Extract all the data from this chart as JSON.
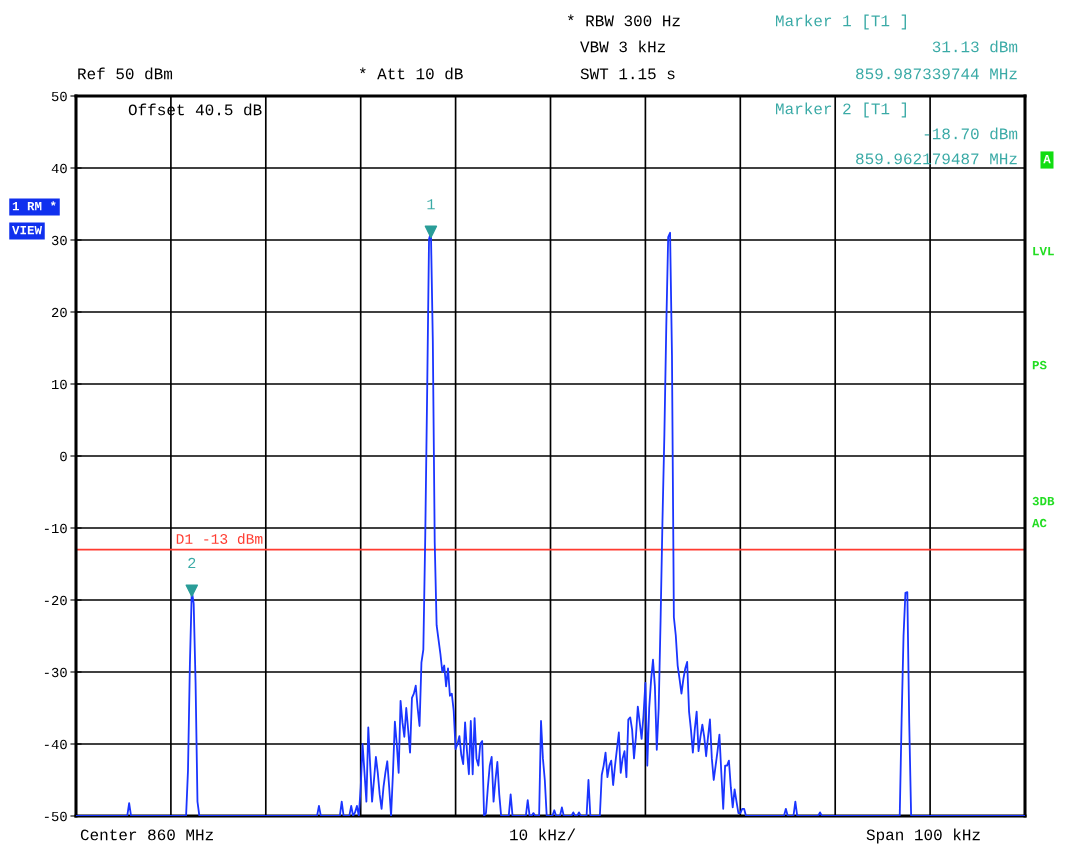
{
  "chart_data": {
    "type": "line",
    "annotations": [
      "Ref 50 dBm",
      "* Att 10 dB",
      "* RBW 300 Hz",
      "VBW 3 kHz",
      "SWT 1.15 s",
      "Marker 1 [T1 ]",
      "31.13 dBm",
      "859.987339744 MHz",
      "Offset 40.5 dB",
      "Marker 2 [T1 ]",
      "-18.70 dBm",
      "859.962179487 MHz",
      "1 RM *",
      "VIEW",
      "A",
      "LVL",
      "PS",
      "3DB",
      "AC",
      "Center 860 MHz",
      "10 kHz/",
      "Span 100 kHz",
      {
        "text": "1",
        "y": 31.13
      },
      {
        "text": "2",
        "y": -18.7
      }
    ],
    "categories": [
      null,
      null,
      null,
      null,
      null,
      null,
      null,
      null,
      null,
      null,
      null,
      null,
      null,
      null,
      null,
      null,
      null,
      null,
      null,
      null,
      null,
      null,
      null,
      null,
      null,
      null,
      null,
      null,
      null,
      null,
      null,
      null,
      null,
      null,
      null,
      null,
      null,
      null,
      null,
      null,
      null,
      null,
      null,
      null,
      null,
      null,
      null,
      null,
      null,
      null,
      null,
      null,
      null,
      null,
      null,
      null,
      null,
      null,
      null,
      null,
      null,
      null,
      null,
      null,
      null,
      null,
      null,
      null,
      null,
      null,
      null,
      null,
      null,
      null,
      null,
      null,
      null,
      null,
      null,
      null,
      null,
      null,
      null,
      null,
      null,
      null,
      null,
      null,
      null,
      null,
      null,
      null,
      null,
      null,
      null,
      null,
      null,
      null,
      null,
      null,
      null,
      null,
      null,
      null,
      null,
      null,
      null,
      null,
      null,
      null,
      null,
      null,
      null,
      null,
      null,
      null,
      null,
      null,
      null,
      null,
      null,
      null,
      null,
      null,
      null,
      null,
      null,
      null,
      null,
      null,
      null,
      null,
      null,
      null,
      null,
      null,
      null,
      null,
      null,
      null,
      null,
      null,
      null,
      null,
      null,
      null,
      null,
      null,
      null,
      null,
      null,
      null,
      null,
      null,
      null,
      null,
      null,
      null,
      null,
      null,
      null,
      null,
      null,
      null,
      null,
      null,
      null,
      null,
      null,
      null,
      null,
      null,
      null,
      null,
      null,
      null,
      null,
      null,
      null,
      null,
      null,
      null,
      null,
      null,
      null,
      null,
      null,
      null,
      null,
      null,
      null,
      null,
      null,
      null,
      null,
      null,
      null,
      null,
      null,
      null,
      null,
      null,
      null,
      null,
      null,
      null,
      null,
      null,
      null,
      null,
      null,
      null,
      null,
      null,
      null,
      null,
      null,
      null,
      null,
      null,
      null,
      null,
      null,
      null,
      null,
      null,
      null,
      null,
      null,
      null,
      null,
      null,
      null,
      null,
      null,
      null,
      null,
      null,
      null,
      null,
      null,
      null,
      null,
      null,
      null,
      null,
      null,
      null,
      null,
      null,
      null,
      null,
      null,
      null,
      null,
      null,
      null,
      null,
      null,
      null,
      null,
      null,
      null,
      null,
      null,
      null,
      null,
      null,
      null,
      null,
      null,
      null,
      null,
      null,
      null,
      null,
      null,
      null,
      null,
      null,
      null,
      null,
      null,
      null,
      null,
      null,
      null,
      null,
      null,
      null,
      null,
      null,
      null,
      null,
      null,
      null,
      null,
      null,
      null,
      null,
      null,
      null,
      null,
      null,
      null,
      null,
      null,
      null,
      null,
      null,
      null,
      null,
      null,
      null,
      null,
      null,
      null,
      null,
      null,
      null,
      null,
      null,
      null,
      null,
      null,
      null,
      null,
      null,
      null,
      null,
      null,
      null,
      null,
      null,
      null,
      null,
      null,
      null,
      null,
      null,
      null,
      null,
      null,
      null,
      null,
      null,
      null,
      null,
      null,
      null,
      null,
      null,
      null,
      null,
      null,
      null,
      null,
      null,
      null,
      null,
      null,
      null,
      null,
      null,
      null,
      null,
      null,
      null,
      null,
      null,
      null,
      null,
      null,
      null,
      null,
      null,
      null,
      null,
      null,
      null,
      null,
      null,
      null,
      null,
      null,
      null,
      null,
      null,
      null,
      null,
      null,
      null,
      null,
      null,
      null,
      null,
      null,
      null,
      null,
      null,
      null,
      null,
      null,
      null,
      null,
      null,
      null,
      null,
      null,
      null,
      null,
      null,
      null,
      null,
      null,
      null,
      null,
      null,
      null,
      null,
      null,
      null,
      null,
      null,
      null,
      null,
      null,
      null,
      null,
      null,
      null,
      null,
      null,
      null,
      null,
      null,
      null,
      null,
      null,
      null,
      null,
      null,
      null,
      null,
      null,
      null,
      null,
      null,
      null,
      null,
      null,
      null,
      null,
      null,
      null,
      null,
      null,
      null,
      null,
      null,
      null,
      null,
      null,
      null,
      null,
      null,
      null,
      null,
      null,
      null,
      null,
      null,
      null,
      null,
      null,
      null,
      null,
      null,
      null,
      null,
      null,
      null,
      null,
      null,
      null,
      null,
      null,
      null,
      null,
      null,
      null,
      null,
      null,
      null,
      null,
      null,
      null,
      null,
      null,
      null,
      null
    ],
    "series": [
      {
        "color": "#1a35ff",
        "values": [
          -50,
          -50,
          -50,
          -50,
          -50,
          -50,
          -50,
          -50,
          -50,
          -50,
          -50,
          -50,
          -50,
          -50,
          -50,
          -50,
          -50,
          -50,
          -50,
          -50,
          -50,
          -50,
          -50,
          -50,
          -50,
          -50,
          -50,
          -50,
          -48.2,
          -50,
          -50,
          -50,
          -50,
          -50,
          -50,
          -50,
          -50,
          -50,
          -50,
          -50,
          -50,
          -50,
          -50,
          -50,
          -50,
          -50,
          -50,
          -50,
          -50,
          -50,
          -50,
          -50,
          -50,
          -50,
          -50,
          -50,
          -50,
          -50,
          -50,
          -43.7,
          -29,
          -18.7,
          -20.5,
          -31.5,
          -48,
          -50,
          -50,
          -50,
          -50,
          -50,
          -50,
          -50,
          -50,
          -50,
          -50,
          -50,
          -50,
          -50,
          -50,
          -50,
          -50,
          -50,
          -50,
          -50,
          -50,
          -50,
          -50,
          -50,
          -50,
          -50,
          -50,
          -50,
          -50,
          -50,
          -50,
          -50,
          -50,
          -50,
          -50,
          -50,
          -50,
          -50,
          -50,
          -50,
          -50,
          -50,
          -50,
          -50,
          -50,
          -50,
          -50,
          -50,
          -50,
          -50,
          -50,
          -50,
          -50,
          -50,
          -50,
          -50,
          -50,
          -50,
          -50,
          -50,
          -50,
          -50,
          -50,
          -50,
          -48.6,
          -50,
          -50,
          -50,
          -50,
          -50,
          -50,
          -50,
          -50,
          -50,
          -50,
          -50,
          -48,
          -50,
          -50,
          -50,
          -50,
          -48.6,
          -50,
          -49.5,
          -48.6,
          -50,
          -46,
          -40,
          -44,
          -48,
          -37.7,
          -43,
          -48,
          -45,
          -41.8,
          -44,
          -47,
          -49,
          -46,
          -44,
          -42.4,
          -46,
          -50,
          -44,
          -36.9,
          -40,
          -44,
          -34,
          -37,
          -39,
          -35,
          -38,
          -41.2,
          -33.6,
          -33,
          -31.9,
          -35,
          -37.5,
          -28.7,
          -26.9,
          -11.3,
          8.6,
          30.1,
          31.13,
          15.9,
          -12,
          -23.5,
          -25.5,
          -27.5,
          -30,
          -29.1,
          -32,
          -29.5,
          -33.3,
          -33,
          -35.4,
          -40.7,
          -40,
          -38.9,
          -41.5,
          -42.8,
          -37,
          -41,
          -44.2,
          -36.8,
          -44.2,
          -36.4,
          -42,
          -43,
          -40,
          -39.6,
          -50,
          -49.6,
          -46,
          -43,
          -41.8,
          -48,
          -45,
          -42.5,
          -47,
          -50,
          -50,
          -50,
          -50,
          -50,
          -47,
          -50,
          -50,
          -50,
          -50,
          -50,
          -50,
          -50,
          -50,
          -47.8,
          -50,
          -50,
          -49.6,
          -50,
          -50,
          -50,
          -36.8,
          -42,
          -45,
          -50,
          -50,
          -50,
          -50,
          -49.2,
          -50,
          -50,
          -50,
          -48.8,
          -50,
          -50,
          -50,
          -50,
          -50,
          -49.5,
          -50,
          -50,
          -49.5,
          -50,
          -50,
          -50,
          -50,
          -45,
          -50,
          -50,
          -50,
          -50,
          -50,
          -50,
          -44.3,
          -43,
          -41.2,
          -44.6,
          -43,
          -42.3,
          -45.7,
          -43,
          -40.7,
          -38.4,
          -44,
          -42,
          -41,
          -44.6,
          -36.6,
          -36.3,
          -38,
          -42,
          -39,
          -34.8,
          -37,
          -39.3,
          -36,
          -31.5,
          -43,
          -35,
          -31.1,
          -28.3,
          -32,
          -40.8,
          -35,
          -22.8,
          -8.9,
          3,
          18,
          30.4,
          31,
          14,
          -22.4,
          -24.9,
          -29.1,
          -31,
          -33,
          -31,
          -29.5,
          -28.6,
          -35.5,
          -38,
          -41.2,
          -38,
          -35.5,
          -41,
          -39,
          -37.3,
          -39,
          -41.7,
          -39,
          -36.6,
          -42,
          -45,
          -43,
          -41,
          -38.7,
          -44,
          -49,
          -43,
          -43,
          -42.3,
          -46,
          -48.8,
          -46.3,
          -48,
          -49.6,
          -49.6,
          -49,
          -49,
          -50,
          -50,
          -50,
          -50,
          -50,
          -50,
          -50,
          -50,
          -50,
          -50,
          -50,
          -50,
          -50,
          -50,
          -50,
          -50,
          -50,
          -50,
          -50,
          -50,
          -50,
          -49,
          -50,
          -50,
          -50,
          -50,
          -48,
          -50,
          -50,
          -50,
          -50,
          -50,
          -50,
          -50,
          -50,
          -50,
          -50,
          -50,
          -50,
          -49.5,
          -50,
          -50,
          -50,
          -50,
          -50,
          -50,
          -50,
          -50,
          -50,
          -50,
          -50,
          -50,
          -50,
          -50,
          -50,
          -50,
          -50,
          -50,
          -50,
          -50,
          -50,
          -50,
          -50,
          -50,
          -50,
          -50,
          -50,
          -50,
          -50,
          -50,
          -50,
          -50,
          -50,
          -50,
          -50,
          -50,
          -50,
          -50,
          -50,
          -50,
          -50,
          -50,
          -36.5,
          -25,
          -19,
          -18.9,
          -37,
          -50,
          -50,
          -50,
          -50,
          -50,
          -50,
          -50,
          -50,
          -50,
          -50,
          -50,
          -50,
          -50,
          -50,
          -50,
          -50,
          -50,
          -50,
          -50,
          -50,
          -50,
          -50,
          -50,
          -50,
          -50,
          -50,
          -50,
          -50,
          -50,
          -50,
          -50,
          -50,
          -50,
          -50,
          -50,
          -50,
          -50,
          -50,
          -50,
          -50,
          -50,
          -50,
          -50,
          -50,
          -50,
          -50,
          -50,
          -50,
          -50,
          -50,
          -50,
          -50,
          -50,
          -50,
          -50,
          -50,
          -50,
          -50,
          -50,
          -50,
          -50
        ]
      }
    ],
    "ylim": [
      -50,
      50
    ],
    "yticks": [
      50,
      40,
      30,
      20,
      10,
      0,
      -10,
      -20,
      -30,
      -40,
      -50
    ],
    "tick_labels": "y",
    "grid": true,
    "ref_lines": [
      {
        "axis": "y",
        "value": -13,
        "label": "D1 -13 dBm",
        "color": "#ff3b30"
      }
    ]
  }
}
